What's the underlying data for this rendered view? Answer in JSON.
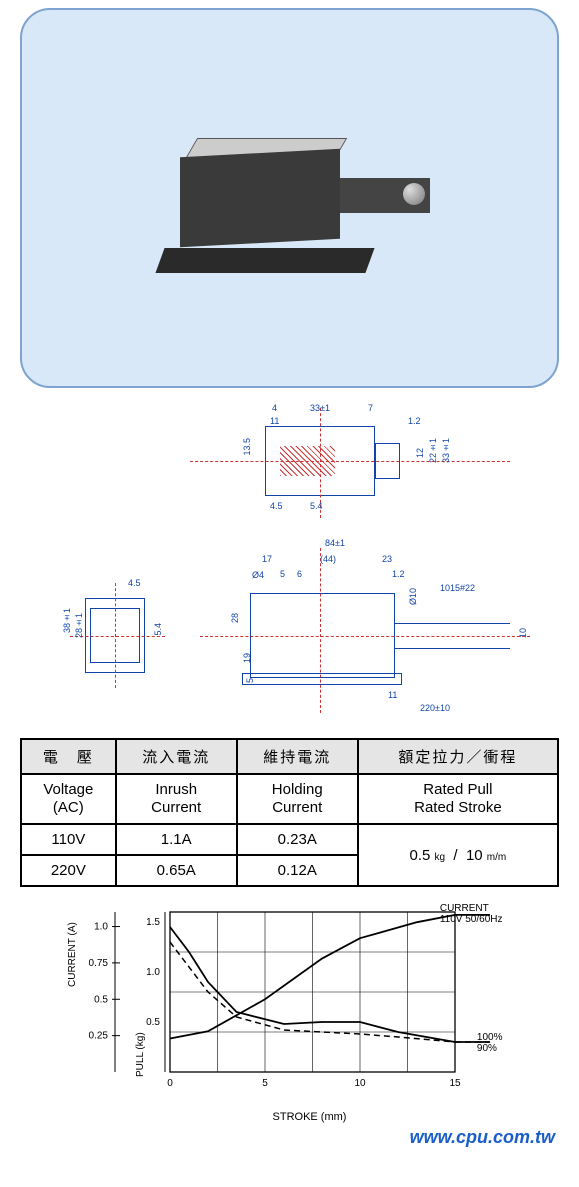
{
  "photo": {
    "panel_bg": "#d9e8f8",
    "panel_border": "#7da3d0"
  },
  "drawing": {
    "color": "#1144aa",
    "centerline_color": "#cc3333",
    "top_view": {
      "dims": {
        "d1": "4",
        "d2": "33±1",
        "d3": "7",
        "d4": "1.2",
        "d5": "11",
        "d6": "4.5",
        "d7": "5.4",
        "d8": "13.5",
        "d9": "12",
        "d10": "22±1",
        "d11": "33±1"
      }
    },
    "side_view": {
      "dims": {
        "d1": "38±1",
        "d2": "28±1",
        "d3": "4.5",
        "d4": "5.4"
      }
    },
    "front_view": {
      "dims": {
        "w_total": "84±1",
        "w1": "17",
        "w2": "(44)",
        "w3": "23",
        "d_phi4": "Ø4",
        "d5": "5",
        "d6": "6",
        "d12": "1.2",
        "d_phi10": "Ø10",
        "wire": "1015#22",
        "h28": "28",
        "h19": "19",
        "h5": "5",
        "h10": "10",
        "foot11": "11",
        "ext": "220±10"
      }
    }
  },
  "table": {
    "headers_cn": [
      "電　壓",
      "流入電流",
      "維持電流",
      "額定拉力／衝程"
    ],
    "headers_en": [
      "Voltage\n(AC)",
      "Inrush\nCurrent",
      "Holding\nCurrent",
      "Rated Pull\nRated Stroke"
    ],
    "rows": [
      {
        "voltage": "110V",
        "inrush": "1.1A",
        "holding": "0.23A"
      },
      {
        "voltage": "220V",
        "inrush": "0.65A",
        "holding": "0.12A"
      }
    ],
    "rated_pull_value": "0.5",
    "rated_pull_unit": "kg",
    "rated_stroke_value": "10",
    "rated_stroke_unit": "m/m"
  },
  "chart": {
    "x_label": "STROKE (mm)",
    "y_label_left": "CURRENT (A)",
    "y_label_pull": "PULL (kg)",
    "legend_title": "CURRENT",
    "legend_sub": "110V 50/60Hz",
    "legend_100": "100%",
    "legend_90": "90%",
    "x_ticks": [
      "0",
      "5",
      "10",
      "15"
    ],
    "y_current": [
      "0.25",
      "0.5",
      "0.75",
      "1.0"
    ],
    "y_pull": [
      "0.5",
      "1.0",
      "1.5"
    ],
    "xlim": [
      0,
      15
    ],
    "ylim_current": [
      0,
      1.1
    ],
    "ylim_pull": [
      0,
      1.6
    ],
    "series_current": {
      "points": [
        [
          0,
          0.23
        ],
        [
          2,
          0.28
        ],
        [
          5,
          0.5
        ],
        [
          8,
          0.78
        ],
        [
          10,
          0.92
        ],
        [
          13,
          1.03
        ],
        [
          15,
          1.08
        ]
      ],
      "color": "#000000",
      "width": 1.8,
      "dash": "none"
    },
    "series_pull_100": {
      "points": [
        [
          0,
          1.45
        ],
        [
          1,
          1.2
        ],
        [
          2,
          0.9
        ],
        [
          3.5,
          0.6
        ],
        [
          6,
          0.48
        ],
        [
          8,
          0.5
        ],
        [
          10,
          0.5
        ],
        [
          12,
          0.4
        ],
        [
          15,
          0.3
        ]
      ],
      "color": "#000000",
      "width": 1.8,
      "dash": "none"
    },
    "series_pull_90": {
      "points": [
        [
          0,
          1.3
        ],
        [
          1,
          1.05
        ],
        [
          2,
          0.8
        ],
        [
          3.5,
          0.55
        ],
        [
          6,
          0.42
        ],
        [
          8,
          0.4
        ],
        [
          10,
          0.38
        ],
        [
          12,
          0.35
        ],
        [
          15,
          0.3
        ]
      ],
      "color": "#000000",
      "width": 1.5,
      "dash": "6,4"
    },
    "grid_color": "#000000",
    "background": "#ffffff"
  },
  "watermark": "www.cpu.com.tw"
}
